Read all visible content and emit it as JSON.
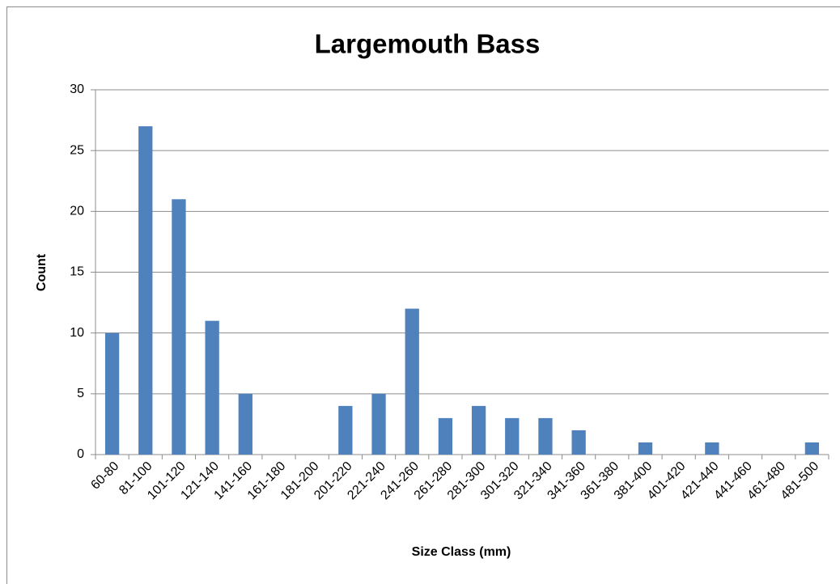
{
  "chart_data": {
    "type": "bar",
    "title": "Largemouth Bass",
    "x_label": "Size Class (mm)",
    "y_label": "Count",
    "categories": [
      "60-80",
      "81-100",
      "101-120",
      "121-140",
      "141-160",
      "161-180",
      "181-200",
      "201-220",
      "221-240",
      "241-260",
      "261-280",
      "281-300",
      "301-320",
      "321-340",
      "341-360",
      "361-380",
      "381-400",
      "401-420",
      "421-440",
      "441-460",
      "461-480",
      "481-500"
    ],
    "values": [
      10,
      27,
      21,
      11,
      5,
      0,
      0,
      4,
      5,
      12,
      3,
      4,
      3,
      3,
      2,
      0,
      1,
      0,
      1,
      0,
      0,
      1
    ],
    "color": "#4f81bd",
    "ylim": [
      0,
      30
    ],
    "yticks": [
      0,
      5,
      10,
      15,
      20,
      25,
      30
    ],
    "grid": true
  }
}
